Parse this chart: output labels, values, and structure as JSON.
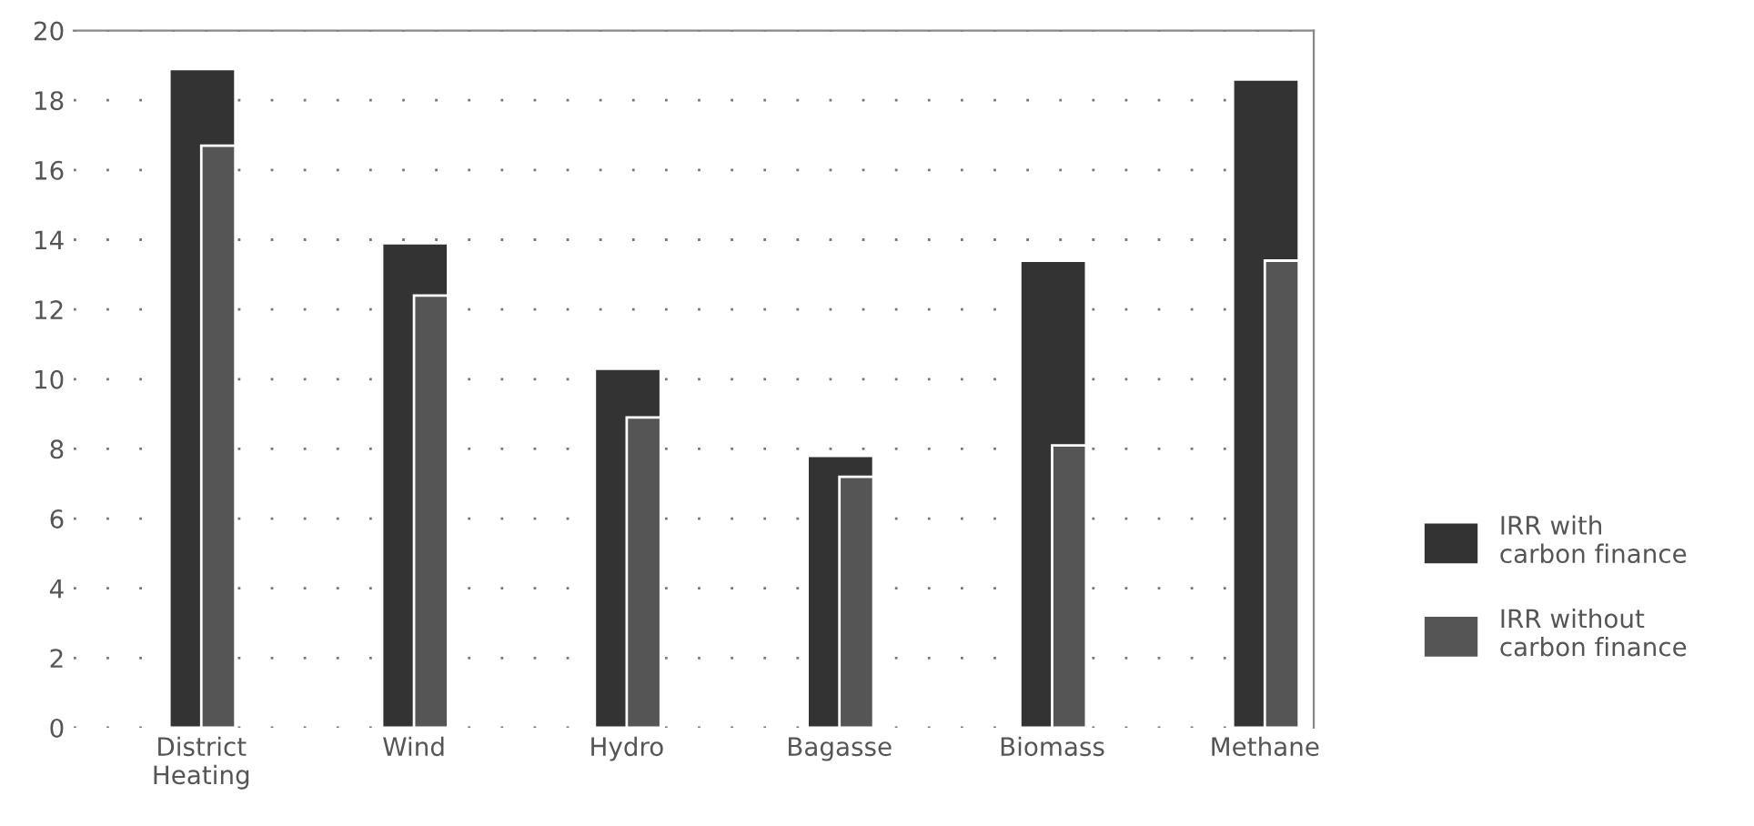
{
  "chart_data": {
    "type": "bar",
    "categories": [
      "District\nHeating",
      "Wind",
      "Hydro",
      "Bagasse",
      "Biomass",
      "Methane"
    ],
    "series": [
      {
        "name": "IRR with\ncarbon finance",
        "color": "#333333",
        "values": [
          18.9,
          13.9,
          10.3,
          7.8,
          13.4,
          18.6
        ]
      },
      {
        "name": "IRR without\ncarbon finance",
        "color": "#555555",
        "values": [
          16.7,
          12.4,
          8.9,
          7.2,
          8.1,
          13.4
        ]
      }
    ],
    "ylim": [
      0,
      20
    ],
    "yticks": [
      0,
      2,
      4,
      6,
      8,
      10,
      12,
      14,
      16,
      18,
      20
    ],
    "grid": "y",
    "legend": "right"
  }
}
